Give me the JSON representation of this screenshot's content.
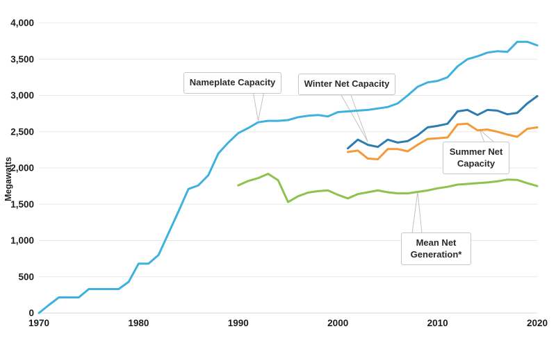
{
  "colors": {
    "nameplate": "#3fb1de",
    "winter": "#2c7cb0",
    "summer": "#f29b38",
    "mean_generation": "#8fc24c",
    "gridline": "#e8e8e8",
    "baseline": "#d8d8d8",
    "tick_text": "#1c1c1c",
    "callout_border": "#c6c6c6",
    "leader_line": "#c2c2c2"
  },
  "annotations": [
    {
      "label": "Nameplate Capacity",
      "target_year": 1992,
      "target_value": 2650
    },
    {
      "label": "Winter Net Capacity",
      "target_year": 2003,
      "target_value": 2360
    },
    {
      "label": "Summer Net Capacity",
      "target_year": 2014.2,
      "target_value": 2530
    },
    {
      "label": "Mean Net Generation*",
      "target_year": 2008,
      "target_value": 1670
    }
  ],
  "chart_data": {
    "type": "line",
    "title": "",
    "xlabel": "",
    "ylabel": "Megawatts",
    "xlim": [
      1970,
      2020
    ],
    "ylim": [
      0,
      4000
    ],
    "grid": "horizontal",
    "legend_position": "none (labels via callout boxes)",
    "x_ticks": [
      {
        "value": 1970,
        "label": "1970"
      },
      {
        "value": 1980,
        "label": "1980"
      },
      {
        "value": 1990,
        "label": "1990"
      },
      {
        "value": 2000,
        "label": "2000"
      },
      {
        "value": 2010,
        "label": "2010"
      },
      {
        "value": 2020,
        "label": "2020"
      }
    ],
    "y_ticks": [
      {
        "value": 0,
        "label": "0"
      },
      {
        "value": 500,
        "label": "500"
      },
      {
        "value": 1000,
        "label": "1,000"
      },
      {
        "value": 1500,
        "label": "1,500"
      },
      {
        "value": 2000,
        "label": "2,000"
      },
      {
        "value": 2500,
        "label": "2,500"
      },
      {
        "value": 3000,
        "label": "3,000"
      },
      {
        "value": 3500,
        "label": "3,500"
      },
      {
        "value": 4000,
        "label": "4,000"
      }
    ],
    "series": [
      {
        "name": "Nameplate Capacity",
        "color_key": "nameplate",
        "start_year": 1970,
        "values": [
          0,
          110,
          215,
          215,
          215,
          330,
          330,
          330,
          330,
          430,
          680,
          680,
          800,
          1100,
          1400,
          1710,
          1760,
          1900,
          2200,
          2350,
          2480,
          2550,
          2630,
          2650,
          2650,
          2660,
          2700,
          2720,
          2730,
          2710,
          2770,
          2780,
          2790,
          2800,
          2820,
          2840,
          2890,
          3000,
          3120,
          3180,
          3200,
          3250,
          3400,
          3500,
          3540,
          3590,
          3610,
          3600,
          3740,
          3740,
          3690
        ]
      },
      {
        "name": "Winter Net Capacity",
        "color_key": "winter",
        "start_year": 2001,
        "values": [
          2270,
          2390,
          2320,
          2290,
          2390,
          2350,
          2370,
          2450,
          2560,
          2580,
          2610,
          2780,
          2800,
          2730,
          2800,
          2790,
          2740,
          2760,
          2890,
          2990
        ]
      },
      {
        "name": "Summer Net Capacity",
        "color_key": "summer",
        "start_year": 2001,
        "values": [
          2220,
          2240,
          2130,
          2120,
          2260,
          2260,
          2230,
          2320,
          2400,
          2410,
          2420,
          2600,
          2610,
          2520,
          2530,
          2500,
          2460,
          2430,
          2540,
          2560
        ]
      },
      {
        "name": "Mean Net Generation*",
        "color_key": "mean_generation",
        "start_year": 1990,
        "values": [
          1760,
          1820,
          1860,
          1920,
          1830,
          1530,
          1610,
          1660,
          1680,
          1690,
          1630,
          1580,
          1640,
          1665,
          1690,
          1665,
          1650,
          1650,
          1670,
          1690,
          1720,
          1740,
          1770,
          1780,
          1790,
          1800,
          1815,
          1840,
          1835,
          1790,
          1750
        ]
      }
    ]
  }
}
